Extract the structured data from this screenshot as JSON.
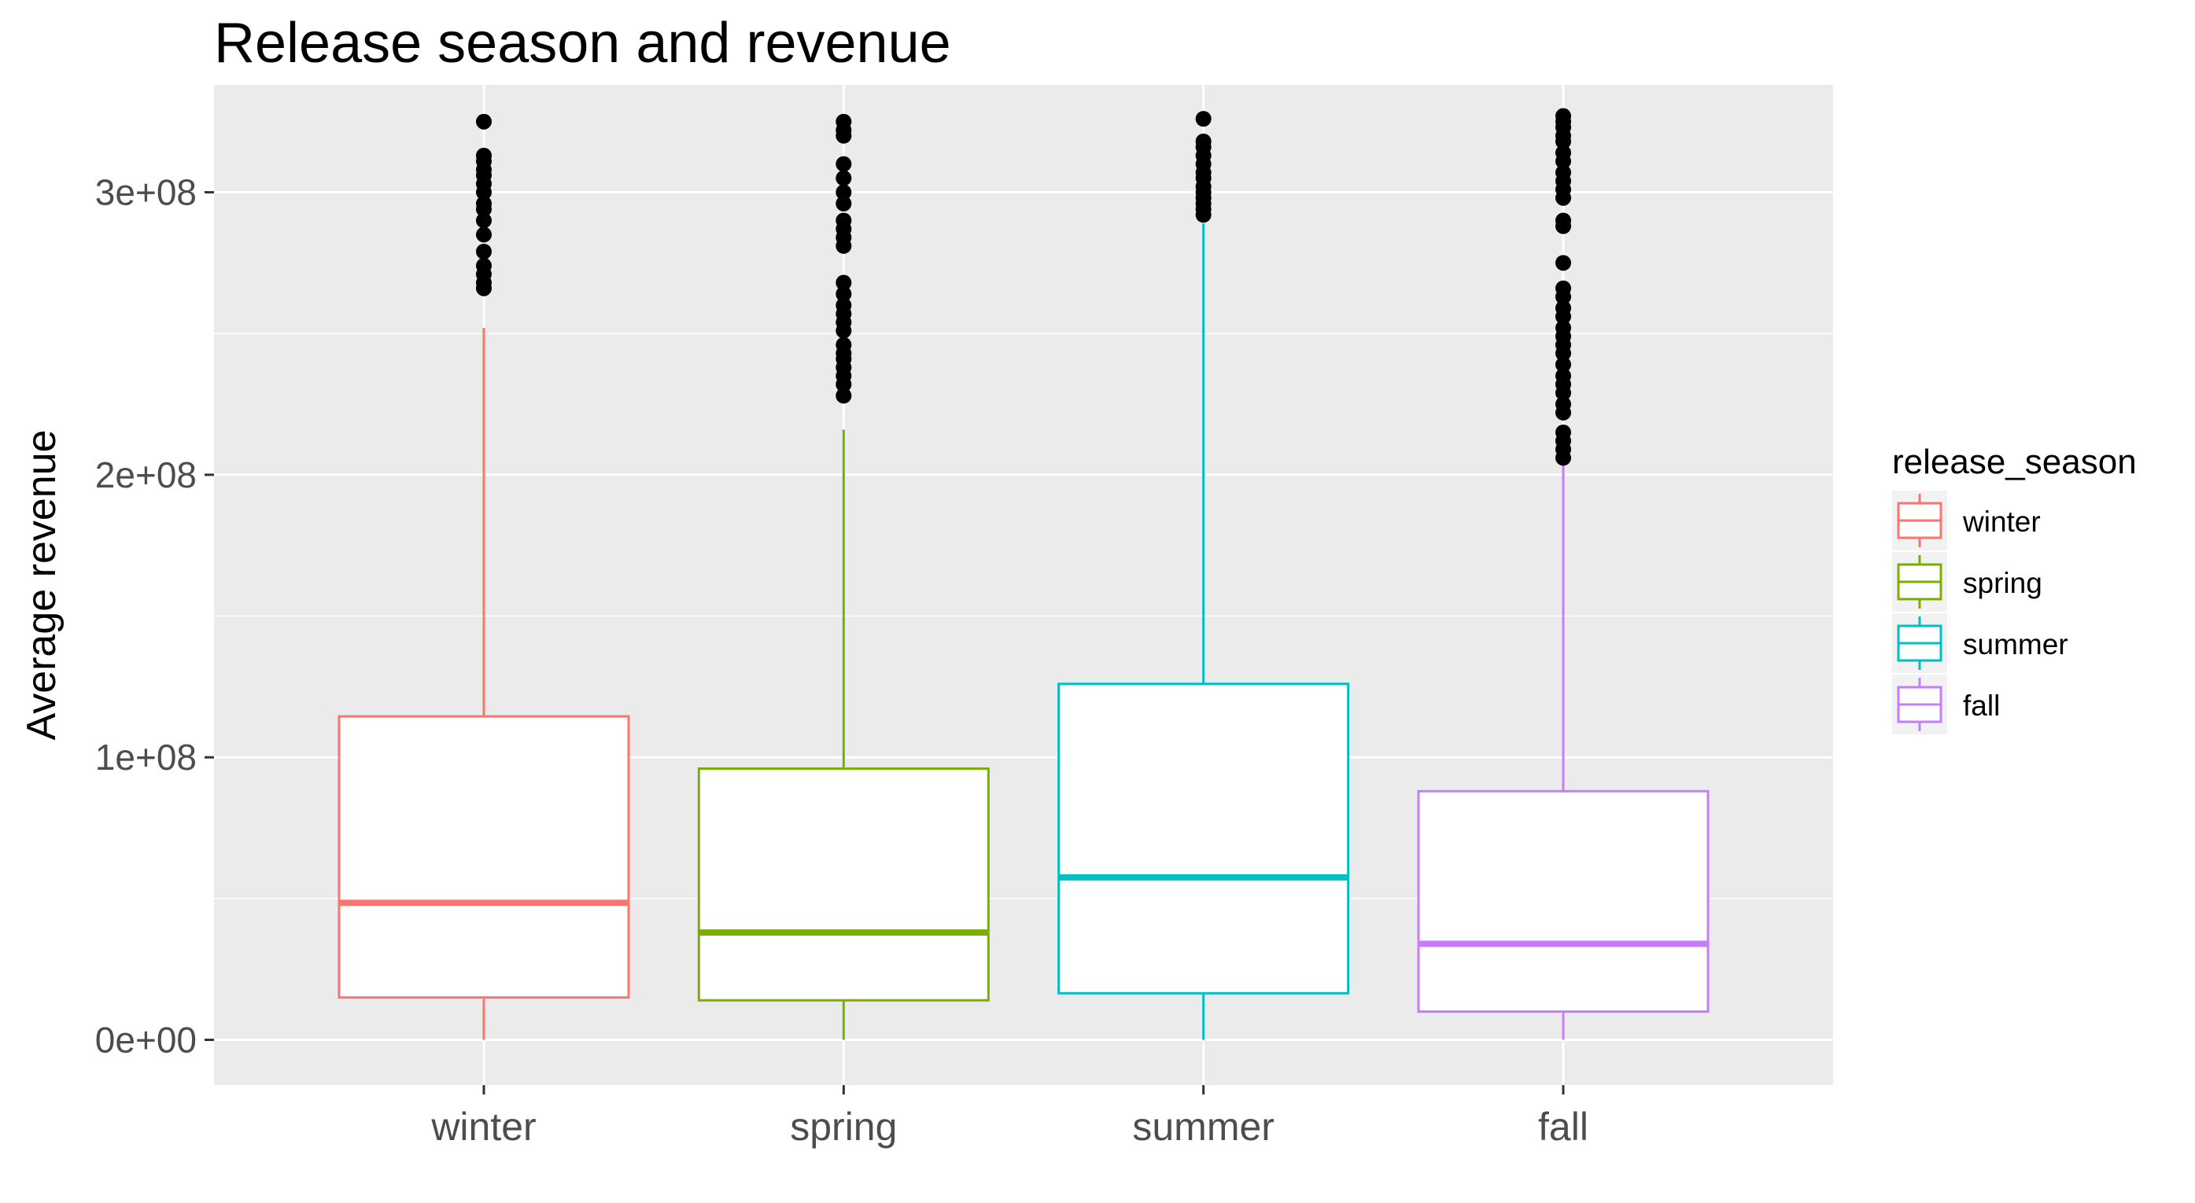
{
  "chart_data": {
    "type": "boxplot",
    "title": "Release season and revenue",
    "xlabel": "",
    "ylabel": "Average revenue",
    "ylim": [
      -16000000,
      338000000
    ],
    "y_ticks": [
      0,
      100000000,
      200000000,
      300000000
    ],
    "y_tick_labels": [
      "0e+00",
      "1e+08",
      "2e+08",
      "3e+08"
    ],
    "categories": [
      "winter",
      "spring",
      "summer",
      "fall"
    ],
    "legend_title": "release_season",
    "legend_position": "right",
    "grid": true,
    "series": [
      {
        "name": "winter",
        "color": "#F8766D",
        "whisker_low": 0,
        "q1": 15000000,
        "median": 48500000,
        "q3": 114500000,
        "whisker_high": 252000000,
        "outliers": [
          266000000,
          268000000,
          271000000,
          274000000,
          279000000,
          285000000,
          290000000,
          294000000,
          296000000,
          300000000,
          303000000,
          306000000,
          308000000,
          311000000,
          313000000,
          325000000
        ]
      },
      {
        "name": "spring",
        "color": "#7CAE00",
        "whisker_low": 0,
        "q1": 14000000,
        "median": 38000000,
        "q3": 96000000,
        "whisker_high": 216000000,
        "outliers": [
          228000000,
          232000000,
          235000000,
          238000000,
          241000000,
          243000000,
          246000000,
          251000000,
          254000000,
          257000000,
          260000000,
          264000000,
          268000000,
          281000000,
          284000000,
          287000000,
          290000000,
          296000000,
          300000000,
          305000000,
          310000000,
          320000000,
          322000000,
          325000000
        ]
      },
      {
        "name": "summer",
        "color": "#00BFC4",
        "whisker_low": 0,
        "q1": 16500000,
        "median": 57500000,
        "q3": 126000000,
        "whisker_high": 289000000,
        "outliers": [
          292000000,
          294000000,
          296000000,
          298000000,
          300000000,
          302000000,
          305000000,
          307000000,
          310000000,
          313000000,
          316000000,
          318000000,
          326000000
        ]
      },
      {
        "name": "fall",
        "color": "#C77CFF",
        "whisker_low": 0,
        "q1": 10000000,
        "median": 34000000,
        "q3": 88000000,
        "whisker_high": 204000000,
        "outliers": [
          206000000,
          209000000,
          212000000,
          215000000,
          222000000,
          225000000,
          229000000,
          232000000,
          235000000,
          239000000,
          243000000,
          246000000,
          249000000,
          252000000,
          256000000,
          259000000,
          263000000,
          266000000,
          275000000,
          288000000,
          290000000,
          298000000,
          301000000,
          304000000,
          307000000,
          311000000,
          314000000,
          318000000,
          320000000,
          323000000,
          325000000,
          327000000
        ]
      }
    ]
  }
}
